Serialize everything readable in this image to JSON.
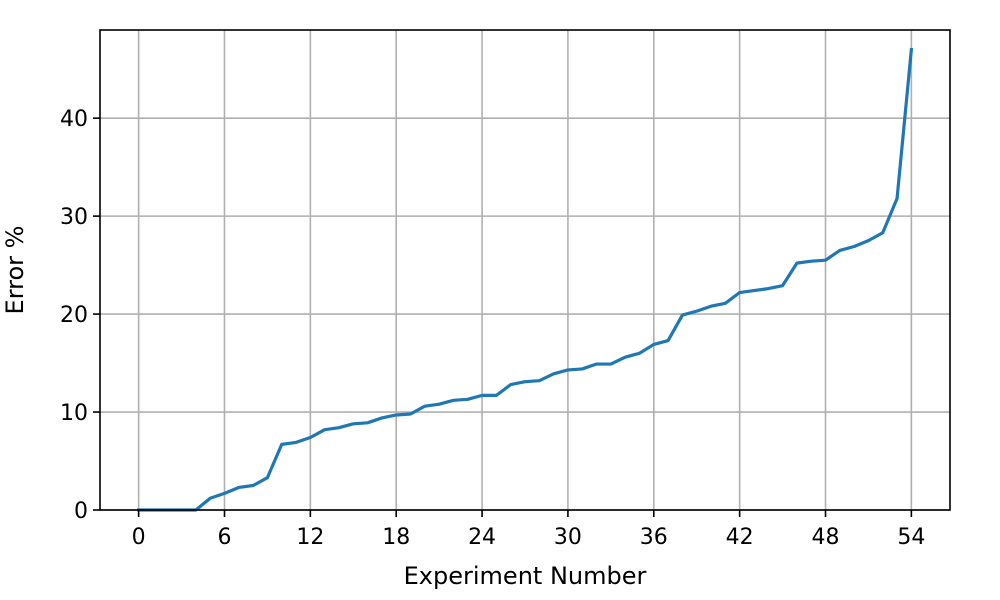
{
  "chart_data": {
    "type": "line",
    "title": "",
    "xlabel": "Experiment Number",
    "ylabel": "Error %",
    "xlim": [
      -2.7,
      56.7
    ],
    "ylim": [
      0,
      49
    ],
    "xticks": [
      0,
      6,
      12,
      18,
      24,
      30,
      36,
      42,
      48,
      54
    ],
    "yticks": [
      0,
      10,
      20,
      30,
      40
    ],
    "grid": true,
    "legend": "none",
    "series": [
      {
        "color": "#1f77b4",
        "x": [
          0,
          1,
          2,
          3,
          4,
          5,
          6,
          7,
          8,
          9,
          10,
          11,
          12,
          13,
          14,
          15,
          16,
          17,
          18,
          19,
          20,
          21,
          22,
          23,
          24,
          25,
          26,
          27,
          28,
          29,
          30,
          31,
          32,
          33,
          34,
          35,
          36,
          37,
          38,
          39,
          40,
          41,
          42,
          43,
          44,
          45,
          46,
          47,
          48,
          49,
          50,
          51,
          52,
          53,
          54
        ],
        "y": [
          0,
          0,
          0,
          0,
          0,
          1.2,
          1.7,
          2.3,
          2.5,
          3.3,
          6.7,
          6.9,
          7.4,
          8.2,
          8.4,
          8.8,
          8.9,
          9.4,
          9.7,
          9.8,
          10.6,
          10.8,
          11.2,
          11.3,
          11.7,
          11.7,
          12.8,
          13.1,
          13.2,
          13.9,
          14.3,
          14.4,
          14.9,
          14.9,
          15.6,
          16.0,
          16.9,
          17.3,
          19.9,
          20.3,
          20.8,
          21.1,
          22.2,
          22.4,
          22.6,
          22.9,
          25.2,
          25.4,
          25.5,
          26.5,
          26.9,
          27.5,
          28.3,
          31.8,
          47.0
        ]
      }
    ]
  }
}
